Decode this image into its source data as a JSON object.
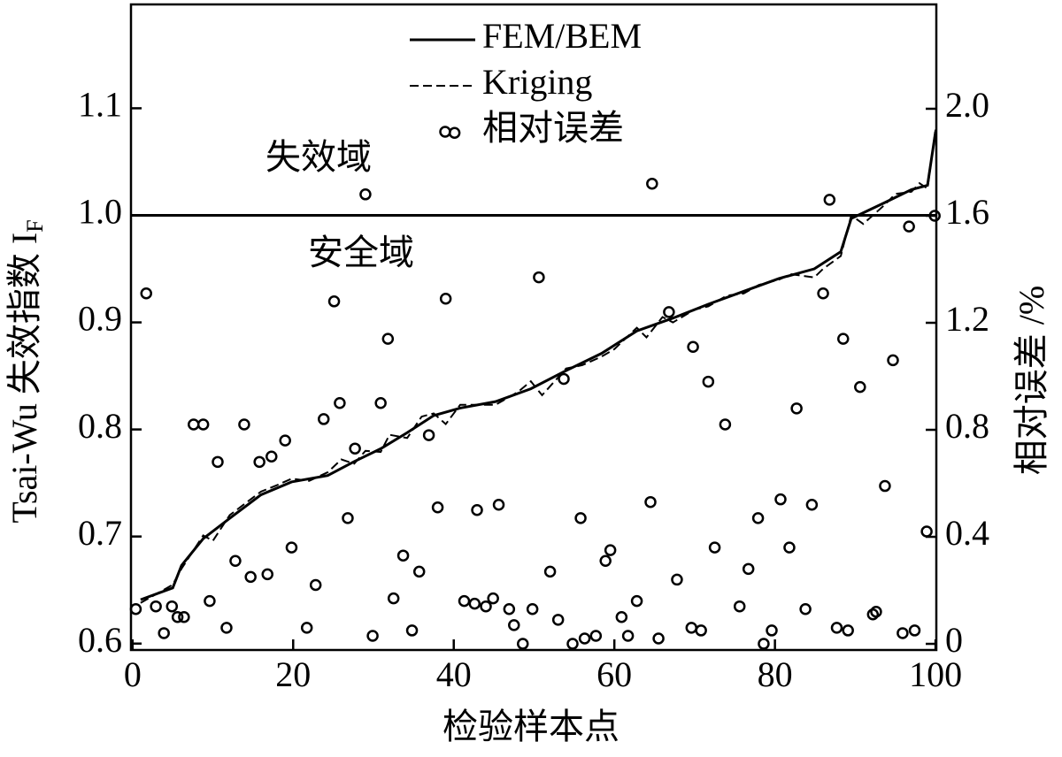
{
  "chart_data": {
    "type": "line",
    "xlabel": "检验样本点",
    "ylabel": "Tsai-Wu 失效指数 I",
    "ylabel_subscript": "F",
    "y2label": "相对误差 /%",
    "annotations": [
      "失效域",
      "安全域"
    ],
    "reference_line": 1,
    "xlim": [
      -0.2,
      100.1
    ],
    "xticks": [
      0,
      20,
      40,
      60,
      80,
      100
    ],
    "ylim": [
      0.594,
      1.197
    ],
    "yticks": [
      0.6,
      0.7,
      0.8,
      0.9,
      {
        "value": 1,
        "label": "1.0"
      },
      1.1
    ],
    "y2lim": [
      -0.023,
      2.39
    ],
    "y2ticks": [
      0,
      0.4,
      0.8,
      1.2,
      1.6,
      {
        "value": 2,
        "label": "2.0"
      }
    ],
    "series": [
      {
        "name": "FEM/BEM",
        "type": "line",
        "dash": "solid",
        "color": "#000000",
        "x": [
          1.0,
          5.0,
          6.1,
          8.8,
          12.1,
          16.0,
          19.8,
          24.3,
          27.6,
          30.9,
          34.2,
          37.5,
          40.8,
          45.2,
          49.6,
          54.0,
          58.4,
          62.8,
          67.3,
          71.7,
          76.1,
          80.5,
          84.9,
          88.2,
          89.5,
          93.7,
          97.0,
          99.0,
          100
        ],
        "values": [
          0.641,
          0.652,
          0.673,
          0.698,
          0.717,
          0.739,
          0.751,
          0.757,
          0.77,
          0.782,
          0.797,
          0.813,
          0.82,
          0.826,
          0.838,
          0.855,
          0.871,
          0.892,
          0.904,
          0.917,
          0.929,
          0.941,
          0.95,
          0.966,
          0.997,
          1.012,
          1.024,
          1.028,
          1.078
        ]
      },
      {
        "name": "Kriging",
        "type": "line",
        "dash": "dashed",
        "color": "#000000",
        "x": [
          1,
          5,
          6.1,
          8.8,
          10,
          12.1,
          16,
          18,
          19.8,
          22,
          24.3,
          26,
          27.6,
          29,
          30.9,
          32,
          34.2,
          36,
          37.5,
          39,
          40.8,
          45.2,
          48,
          49.6,
          51,
          54,
          56,
          58.4,
          60,
          62.8,
          64,
          66,
          67.3,
          70,
          71.7,
          74,
          76.1,
          78,
          80.5,
          82,
          84.9,
          86,
          88.2,
          89.5,
          91,
          93.7,
          95,
          97,
          98,
          99,
          100
        ],
        "values": [
          0.638,
          0.655,
          0.67,
          0.701,
          0.696,
          0.72,
          0.742,
          0.748,
          0.754,
          0.752,
          0.76,
          0.772,
          0.768,
          0.78,
          0.779,
          0.795,
          0.792,
          0.812,
          0.815,
          0.805,
          0.823,
          0.823,
          0.835,
          0.845,
          0.832,
          0.857,
          0.86,
          0.868,
          0.875,
          0.895,
          0.886,
          0.905,
          0.9,
          0.912,
          0.915,
          0.925,
          0.927,
          0.935,
          0.94,
          0.945,
          0.942,
          0.95,
          0.962,
          1.0,
          0.992,
          1.01,
          1.02,
          1.022,
          1.03,
          1.025,
          1.08
        ]
      },
      {
        "name": "相对误差",
        "type": "scatter",
        "axis": "y2",
        "color": "#000000",
        "x": [
          0.4,
          1.7,
          2.9,
          3.9,
          4.9,
          5.6,
          6.4,
          7.6,
          8.8,
          9.6,
          10.6,
          11.7,
          12.8,
          13.9,
          14.7,
          15.8,
          16.8,
          17.3,
          19.0,
          19.8,
          21.7,
          22.8,
          23.8,
          25.1,
          25.8,
          26.8,
          27.7,
          29.0,
          29.9,
          30.9,
          31.8,
          32.5,
          33.7,
          34.8,
          35.7,
          36.9,
          38.0,
          39.0,
          40.1,
          41.3,
          42.6,
          42.9,
          44.0,
          44.9,
          45.6,
          46.9,
          47.5,
          48.6,
          49.8,
          50.6,
          52.0,
          53.0,
          53.7,
          54.8,
          55.8,
          56.3,
          57.7,
          58.9,
          59.5,
          60.9,
          61.7,
          62.8,
          64.5,
          64.7,
          65.5,
          66.8,
          67.8,
          69.6,
          69.8,
          70.8,
          71.7,
          72.5,
          73.8,
          75.6,
          76.7,
          77.9,
          78.6,
          79.6,
          80.7,
          81.8,
          82.7,
          83.8,
          84.6,
          86.0,
          86.8,
          87.7,
          88.5,
          89.1,
          90.6,
          92.2,
          92.6,
          93.7,
          94.7,
          95.9,
          96.7,
          97.4,
          98.9,
          99.9
        ],
        "values": [
          0.13,
          1.31,
          0.14,
          0.04,
          0.14,
          0.1,
          0.1,
          0.82,
          0.82,
          0.16,
          0.68,
          0.06,
          0.31,
          0.82,
          0.25,
          0.68,
          0.26,
          0.7,
          0.76,
          0.36,
          0.06,
          0.22,
          0.84,
          1.28,
          0.9,
          0.47,
          0.73,
          1.68,
          0.03,
          0.9,
          1.14,
          0.17,
          0.33,
          0.05,
          0.27,
          0.78,
          0.51,
          1.29,
          1.91,
          0.16,
          0.15,
          0.5,
          0.14,
          0.17,
          0.52,
          0.13,
          0.07,
          0,
          0.13,
          1.37,
          0.27,
          0.09,
          0.99,
          0,
          0.47,
          0.02,
          0.03,
          0.31,
          0.35,
          0.1,
          0.03,
          0.16,
          0.53,
          1.72,
          0.02,
          1.24,
          0.24,
          0.06,
          1.11,
          0.05,
          0.98,
          0.36,
          0.82,
          0.14,
          0.28,
          0.47,
          0,
          0.05,
          0.54,
          0.36,
          0.88,
          0.13,
          0.52,
          1.31,
          1.66,
          0.06,
          1.14,
          0.05,
          0.96,
          0.11,
          0.12,
          0.59,
          1.06,
          0.04,
          1.56,
          0.05,
          0.42,
          1.6
        ]
      }
    ]
  }
}
